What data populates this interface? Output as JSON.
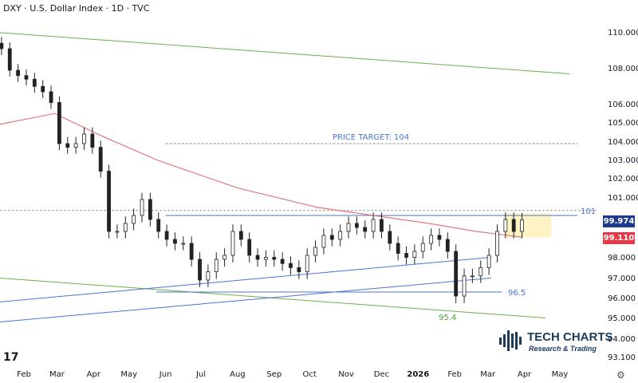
{
  "header": {
    "title": "DXY · U.S. Dollar Index · 1D · TVC"
  },
  "chart_data": {
    "type": "candlestick",
    "title": "DXY · U.S. Dollar Index · 1D · TVC",
    "y_scale": "log",
    "y_ticks": [
      "110.000",
      "108.000",
      "106.000",
      "105.000",
      "104.000",
      "103.000",
      "102.000",
      "101.000",
      "98.000",
      "97.000",
      "96.000",
      "95.000",
      "94.000",
      "93.100"
    ],
    "x_ticks": [
      [
        "2025-02-01",
        "Feb"
      ],
      [
        "2025-03-01",
        "Mar"
      ],
      [
        "2025-04-01",
        "Apr"
      ],
      [
        "2025-05-01",
        "May"
      ],
      [
        "2025-06-01",
        "Jun"
      ],
      [
        "2025-07-01",
        "Jul"
      ],
      [
        "2025-08-01",
        "Aug"
      ],
      [
        "2025-09-01",
        "Sep"
      ],
      [
        "2025-10-01",
        "Oct"
      ],
      [
        "2025-11-01",
        "Nov"
      ],
      [
        "2025-12-01",
        "Dec"
      ],
      [
        "2026-01-01",
        "2026"
      ],
      [
        "2026-02-01",
        "Feb"
      ],
      [
        "2026-03-01",
        "Mar"
      ],
      [
        "2026-04-01",
        "Apr"
      ],
      [
        "2026-05-01",
        "May"
      ]
    ],
    "series": [
      [
        "2025-01-13",
        109.2
      ],
      [
        "2025-01-20",
        108.0
      ],
      [
        "2025-01-27",
        107.7
      ],
      [
        "2025-02-03",
        107.5
      ],
      [
        "2025-02-10",
        107.1
      ],
      [
        "2025-02-17",
        106.8
      ],
      [
        "2025-02-24",
        106.2
      ],
      [
        "2025-03-03",
        104.0
      ],
      [
        "2025-03-10",
        103.8
      ],
      [
        "2025-03-17",
        104.0
      ],
      [
        "2025-03-24",
        104.5
      ],
      [
        "2025-03-31",
        103.8
      ],
      [
        "2025-04-07",
        102.5
      ],
      [
        "2025-04-14",
        99.4
      ],
      [
        "2025-04-21",
        99.4
      ],
      [
        "2025-04-28",
        99.8
      ],
      [
        "2025-05-05",
        100.2
      ],
      [
        "2025-05-12",
        101.0
      ],
      [
        "2025-05-19",
        100.0
      ],
      [
        "2025-05-26",
        99.4
      ],
      [
        "2025-06-02",
        99.0
      ],
      [
        "2025-06-09",
        98.8
      ],
      [
        "2025-06-16",
        98.8
      ],
      [
        "2025-06-23",
        98.0
      ],
      [
        "2025-06-30",
        97.0
      ],
      [
        "2025-07-07",
        97.4
      ],
      [
        "2025-07-14",
        98.0
      ],
      [
        "2025-07-21",
        98.2
      ],
      [
        "2025-07-28",
        99.4
      ],
      [
        "2025-08-04",
        99.0
      ],
      [
        "2025-08-11",
        98.2
      ],
      [
        "2025-08-18",
        98.0
      ],
      [
        "2025-08-25",
        98.1
      ],
      [
        "2025-09-01",
        98.0
      ],
      [
        "2025-09-08",
        97.8
      ],
      [
        "2025-09-15",
        97.6
      ],
      [
        "2025-09-22",
        97.4
      ],
      [
        "2025-09-29",
        98.2
      ],
      [
        "2025-10-06",
        98.6
      ],
      [
        "2025-10-13",
        99.2
      ],
      [
        "2025-10-20",
        99.0
      ],
      [
        "2025-10-27",
        99.4
      ],
      [
        "2025-11-03",
        99.8
      ],
      [
        "2025-11-10",
        99.6
      ],
      [
        "2025-11-17",
        99.4
      ],
      [
        "2025-11-24",
        100.0
      ],
      [
        "2025-12-01",
        99.4
      ],
      [
        "2025-12-08",
        98.8
      ],
      [
        "2025-12-15",
        98.3
      ],
      [
        "2025-12-22",
        98.1
      ],
      [
        "2025-12-29",
        98.4
      ],
      [
        "2026-01-05",
        98.8
      ],
      [
        "2026-01-12",
        99.2
      ],
      [
        "2026-01-19",
        99.0
      ],
      [
        "2026-01-26",
        98.4
      ],
      [
        "2026-02-02",
        96.2
      ],
      [
        "2026-02-09",
        97.2
      ],
      [
        "2026-02-16",
        97.2
      ],
      [
        "2026-02-23",
        97.6
      ],
      [
        "2026-03-02",
        98.2
      ],
      [
        "2026-03-09",
        99.4
      ],
      [
        "2026-03-16",
        100.0
      ],
      [
        "2026-03-23",
        99.4
      ],
      [
        "2026-03-30",
        99.974
      ]
    ],
    "moving_average": [
      [
        "2025-01-11",
        105.0
      ],
      [
        "2025-02-27",
        105.6
      ],
      [
        "2025-04-08",
        104.4
      ],
      [
        "2025-05-25",
        103.1
      ],
      [
        "2025-08-01",
        101.6
      ],
      [
        "2025-10-08",
        100.6
      ],
      [
        "2025-11-24",
        100.2
      ],
      [
        "2026-01-10",
        99.8
      ],
      [
        "2026-02-19",
        99.4
      ],
      [
        "2026-03-30",
        99.11
      ]
    ],
    "annotations": {
      "channel_upper": {
        "from": [
          "2025-01-11",
          110.1
        ],
        "to": [
          "2026-05-09",
          107.8
        ],
        "color": "#6ab04c"
      },
      "channel_lower": {
        "from": [
          "2025-01-11",
          97.1
        ],
        "to": [
          "2026-04-19",
          95.1
        ],
        "color": "#6ab04c"
      },
      "trend_1": {
        "from": [
          "2025-01-11",
          95.9
        ],
        "to": [
          "2026-03-04",
          98.1
        ],
        "color": "#4a74d6"
      },
      "trend_2": {
        "from": [
          "2025-01-11",
          94.9
        ],
        "to": [
          "2026-03-04",
          97.1
        ],
        "color": "#4a74d6"
      },
      "resistance": {
        "from": "2025-06-01",
        "to": "2026-05-16",
        "value": 100.2,
        "color": "#4a74d6"
      },
      "support": {
        "from": "2025-05-24",
        "to": "2026-03-13",
        "value": 96.4,
        "color": "#4a74d6"
      },
      "target_line": {
        "from": "2025-06-01",
        "to": "2026-05-16",
        "value": 104.0
      },
      "dashed_101": {
        "value": 100.45
      },
      "box": {
        "from": "2026-03-15",
        "to": "2026-04-24",
        "top": 100.3,
        "bottom": 99.1,
        "color": "#fdf3c4"
      },
      "price_target_label": "PRICE TARGET: 104",
      "label_101": "101",
      "label_965": "96.5",
      "label_954": "95.4"
    },
    "last_price": {
      "value": "99.974",
      "color": "#1e3a8a"
    },
    "ma_price": {
      "value": "99.110",
      "color": "#e53945"
    }
  },
  "logo": {
    "name": "TECH CHARTS",
    "tagline": "Research & Trading",
    "tv": "17"
  }
}
